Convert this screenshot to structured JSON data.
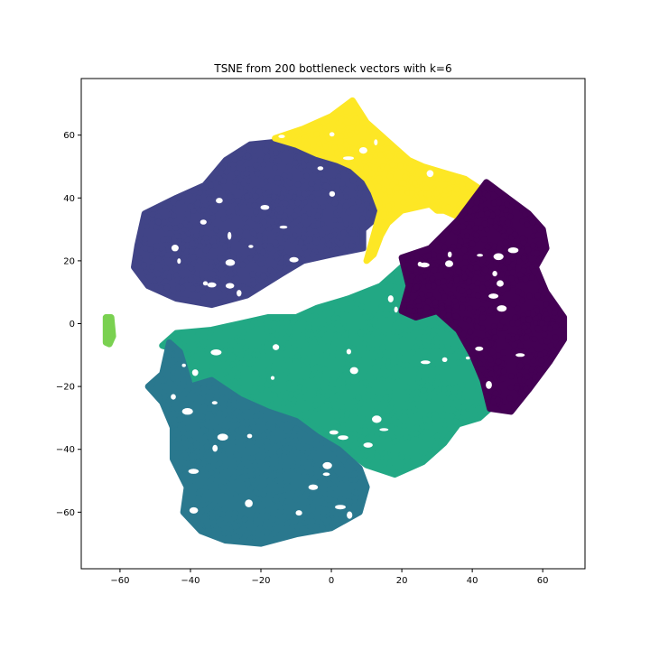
{
  "chart_data": {
    "type": "scatter",
    "title": "TSNE from 200 bottleneck vectors with k=6",
    "xlabel": "",
    "ylabel": "",
    "xlim": [
      -71,
      72
    ],
    "ylim": [
      -78,
      78
    ],
    "xticks": [
      -60,
      -40,
      -20,
      0,
      20,
      40,
      60
    ],
    "yticks": [
      -60,
      -40,
      -20,
      0,
      20,
      40,
      60
    ],
    "grid": false,
    "colors": [
      "#440154",
      "#414487",
      "#2a788e",
      "#22a884",
      "#7ad151",
      "#fde725"
    ],
    "clusters": [
      {
        "label": 0,
        "color": "#440154",
        "outline": [
          [
            20,
            21
          ],
          [
            28,
            24
          ],
          [
            36,
            33
          ],
          [
            44,
            45
          ],
          [
            50,
            40
          ],
          [
            56,
            35
          ],
          [
            60,
            30
          ],
          [
            61,
            24
          ],
          [
            58,
            18
          ],
          [
            61,
            10
          ],
          [
            66,
            2
          ],
          [
            66,
            -5
          ],
          [
            62,
            -12
          ],
          [
            56,
            -21
          ],
          [
            51,
            -28
          ],
          [
            45,
            -27
          ],
          [
            43,
            -18
          ],
          [
            40,
            -10
          ],
          [
            36,
            -2
          ],
          [
            30,
            4
          ],
          [
            24,
            2
          ],
          [
            20,
            4
          ],
          [
            22,
            12
          ]
        ]
      },
      {
        "label": 1,
        "color": "#414487",
        "outline": [
          [
            -55,
            25
          ],
          [
            -53,
            35
          ],
          [
            -44,
            40
          ],
          [
            -36,
            44
          ],
          [
            -30,
            52
          ],
          [
            -23,
            57
          ],
          [
            -14,
            58
          ],
          [
            -8,
            56
          ],
          [
            -2,
            52
          ],
          [
            4,
            50
          ],
          [
            10,
            45
          ],
          [
            14,
            40
          ],
          [
            13,
            34
          ],
          [
            9,
            30
          ],
          [
            9,
            24
          ],
          [
            0,
            22
          ],
          [
            -8,
            20
          ],
          [
            -14,
            16
          ],
          [
            -24,
            9
          ],
          [
            -34,
            6
          ],
          [
            -44,
            8
          ],
          [
            -52,
            12
          ],
          [
            -56,
            18
          ]
        ]
      },
      {
        "label": 2,
        "color": "#2a788e",
        "outline": [
          [
            -52,
            -20
          ],
          [
            -48,
            -16
          ],
          [
            -46,
            -6
          ],
          [
            -43,
            -9
          ],
          [
            -40,
            -20
          ],
          [
            -34,
            -18
          ],
          [
            -26,
            -24
          ],
          [
            -18,
            -28
          ],
          [
            -10,
            -31
          ],
          [
            -4,
            -36
          ],
          [
            2,
            -40
          ],
          [
            8,
            -46
          ],
          [
            10,
            -52
          ],
          [
            8,
            -60
          ],
          [
            0,
            -65
          ],
          [
            -10,
            -67
          ],
          [
            -20,
            -70
          ],
          [
            -30,
            -69
          ],
          [
            -37,
            -66
          ],
          [
            -42,
            -60
          ],
          [
            -41,
            -52
          ],
          [
            -45,
            -43
          ],
          [
            -45,
            -33
          ],
          [
            -48,
            -25
          ]
        ]
      },
      {
        "label": 3,
        "color": "#22a884",
        "outline": [
          [
            -48,
            -7
          ],
          [
            -44,
            -3
          ],
          [
            -34,
            -2
          ],
          [
            -26,
            0
          ],
          [
            -18,
            2
          ],
          [
            -10,
            2
          ],
          [
            -4,
            5
          ],
          [
            5,
            8
          ],
          [
            14,
            12
          ],
          [
            20,
            18
          ],
          [
            22,
            11
          ],
          [
            22,
            5
          ],
          [
            28,
            4
          ],
          [
            36,
            2
          ],
          [
            41,
            -8
          ],
          [
            43,
            -18
          ],
          [
            45,
            -27
          ],
          [
            42,
            -30
          ],
          [
            36,
            -32
          ],
          [
            32,
            -38
          ],
          [
            26,
            -44
          ],
          [
            18,
            -48
          ],
          [
            10,
            -45
          ],
          [
            4,
            -40
          ],
          [
            -2,
            -36
          ],
          [
            -10,
            -30
          ],
          [
            -18,
            -28
          ],
          [
            -26,
            -24
          ],
          [
            -34,
            -18
          ],
          [
            -38,
            -20
          ],
          [
            -42,
            -9
          ]
        ]
      },
      {
        "label": 4,
        "color": "#7ad151",
        "outline": [
          [
            -64,
            2
          ],
          [
            -62.5,
            2
          ],
          [
            -62,
            -4
          ],
          [
            -63,
            -6.5
          ],
          [
            -64,
            -6
          ]
        ]
      },
      {
        "label": 5,
        "color": "#fde725",
        "outline": [
          [
            -16,
            59
          ],
          [
            -8,
            62
          ],
          [
            0,
            66
          ],
          [
            6,
            71
          ],
          [
            10,
            64
          ],
          [
            14,
            60
          ],
          [
            18,
            56
          ],
          [
            22,
            52
          ],
          [
            26,
            50
          ],
          [
            32,
            48
          ],
          [
            38,
            46
          ],
          [
            42,
            43
          ],
          [
            44,
            40
          ],
          [
            40,
            35
          ],
          [
            36,
            34
          ],
          [
            32,
            36
          ],
          [
            30,
            36
          ],
          [
            28,
            38
          ],
          [
            24,
            37
          ],
          [
            20,
            36
          ],
          [
            16,
            32
          ],
          [
            14,
            28
          ],
          [
            12,
            22
          ],
          [
            10,
            20
          ],
          [
            12,
            28
          ],
          [
            14,
            36
          ],
          [
            12,
            42
          ],
          [
            10,
            46
          ],
          [
            6,
            50
          ],
          [
            2,
            52
          ],
          [
            -4,
            54
          ],
          [
            -10,
            57
          ]
        ]
      }
    ]
  }
}
